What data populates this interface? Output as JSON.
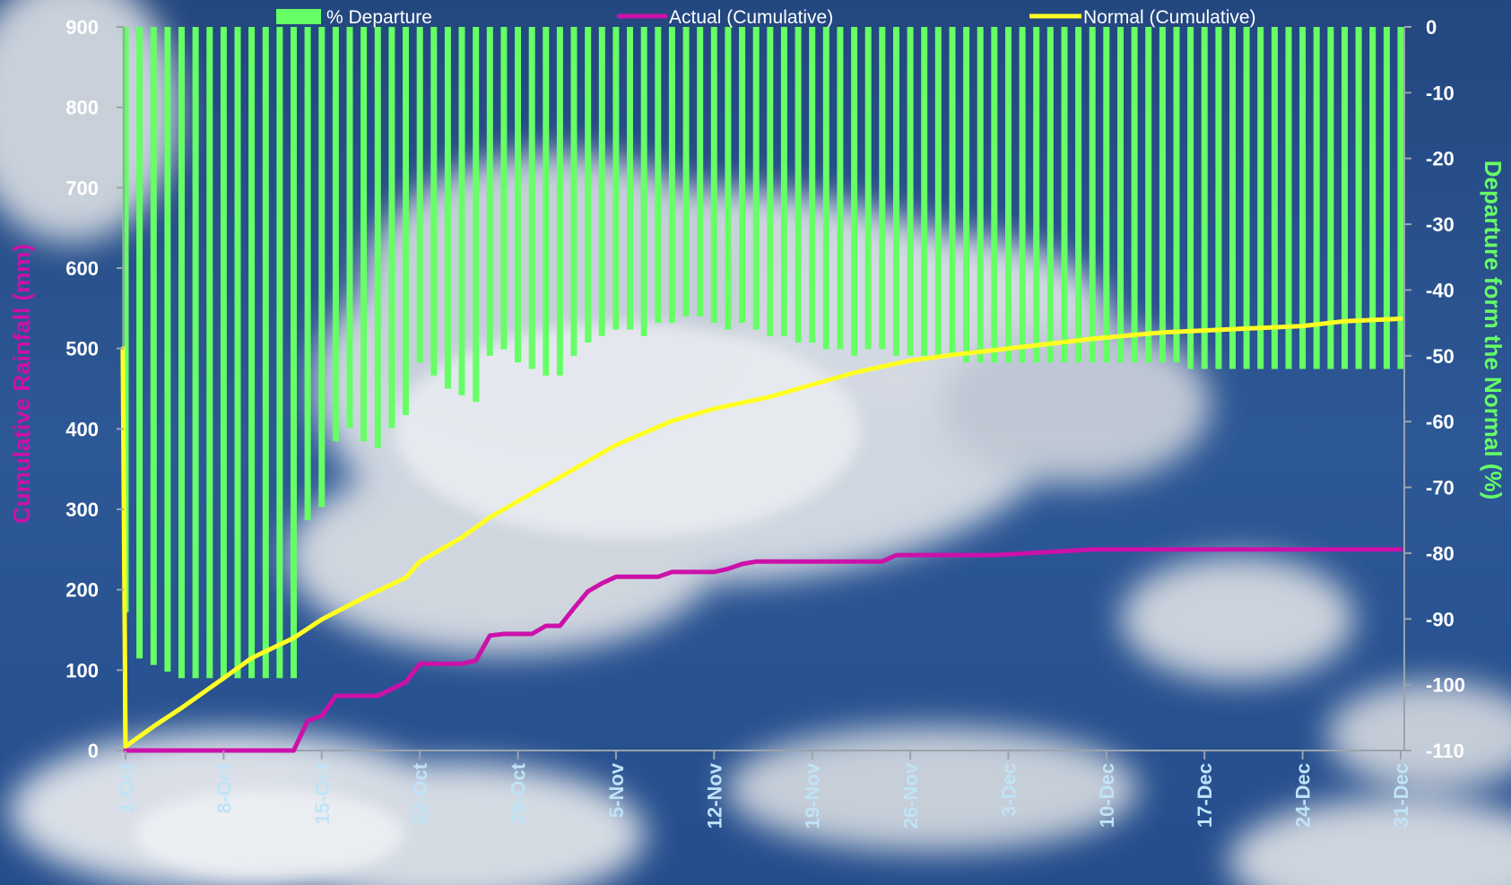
{
  "chart_data": {
    "type": "bar+line",
    "legend": {
      "placement": "top",
      "items": [
        {
          "label": "% Departure",
          "marker": "bar",
          "color": "#66ff66"
        },
        {
          "label": "Actual (Cumulative)",
          "marker": "line",
          "color": "#cc11aa"
        },
        {
          "label": "Normal (Cumulative)",
          "marker": "line",
          "color": "#ffff22"
        }
      ]
    },
    "y_left": {
      "label": "Cumulative Rainfall (mm)",
      "label_color": "#cc11aa",
      "range": [
        0,
        900
      ],
      "ticks": [
        0,
        100,
        200,
        300,
        400,
        500,
        600,
        700,
        800,
        900
      ]
    },
    "y_right": {
      "label": "Departure form the Normal (%)",
      "label_color": "#66ff66",
      "range": [
        -110,
        0
      ],
      "ticks": [
        0,
        -10,
        -20,
        -30,
        -40,
        -50,
        -60,
        -70,
        -80,
        -90,
        -100,
        -110
      ]
    },
    "x_axis": {
      "days": 92,
      "tick_labels": [
        {
          "label": "1-Oct",
          "day": 1
        },
        {
          "label": "8-Oct",
          "day": 8
        },
        {
          "label": "15-Oct",
          "day": 15
        },
        {
          "label": "22-Oct",
          "day": 22
        },
        {
          "label": "29-Oct",
          "day": 29
        },
        {
          "label": "5-Nov",
          "day": 36
        },
        {
          "label": "12-Nov",
          "day": 43
        },
        {
          "label": "19-Nov",
          "day": 50
        },
        {
          "label": "26-Nov",
          "day": 57
        },
        {
          "label": "3-Dec",
          "day": 64
        },
        {
          "label": "10-Dec",
          "day": 71
        },
        {
          "label": "17-Dec",
          "day": 78
        },
        {
          "label": "24-Dec",
          "day": 85
        },
        {
          "label": "31-Dec",
          "day": 92
        }
      ]
    },
    "series": [
      {
        "name": "% Departure",
        "axis": "right",
        "kind": "bar",
        "color": "#66ff66",
        "values": [
          -89,
          -96,
          -97,
          -98,
          -99,
          -99,
          -99,
          -99,
          -99,
          -99,
          -99,
          -99,
          -99,
          -75,
          -73,
          -63,
          -61,
          -63,
          -64,
          -61,
          -59,
          -51,
          -53,
          -55,
          -56,
          -57,
          -50,
          -49,
          -51,
          -52,
          -53,
          -53,
          -50,
          -48,
          -47,
          -46,
          -46,
          -47,
          -45,
          -45,
          -44,
          -44,
          -45,
          -46,
          -45,
          -46,
          -47,
          -47,
          -48,
          -48,
          -49,
          -49,
          -50,
          -49,
          -49,
          -50,
          -50,
          -50,
          -50,
          -50,
          -51,
          -51,
          -51,
          -51,
          -51,
          -51,
          -51,
          -51,
          -51,
          -51,
          -51,
          -51,
          -51,
          -51,
          -51,
          -51,
          -52,
          -52,
          -52,
          -52,
          -52,
          -52,
          -52,
          -52,
          -52,
          -52,
          -52,
          -52,
          -52,
          -52,
          -52,
          -52
        ]
      },
      {
        "name": "Actual (Cumulative)",
        "axis": "left",
        "kind": "line",
        "color": "#cc11aa",
        "points": [
          [
            1,
            0
          ],
          [
            13,
            0
          ],
          [
            14,
            37
          ],
          [
            15,
            43
          ],
          [
            16,
            68
          ],
          [
            19,
            68
          ],
          [
            21,
            85
          ],
          [
            22,
            108
          ],
          [
            25,
            108
          ],
          [
            26,
            112
          ],
          [
            27,
            143
          ],
          [
            28,
            145
          ],
          [
            30,
            145
          ],
          [
            31,
            155
          ],
          [
            32,
            155
          ],
          [
            33,
            177
          ],
          [
            34,
            198
          ],
          [
            35,
            208
          ],
          [
            36,
            216
          ],
          [
            39,
            216
          ],
          [
            40,
            222
          ],
          [
            43,
            222
          ],
          [
            44,
            226
          ],
          [
            45,
            232
          ],
          [
            46,
            235
          ],
          [
            55,
            235
          ],
          [
            56,
            243
          ],
          [
            63,
            243
          ],
          [
            68,
            248
          ],
          [
            70,
            250
          ],
          [
            92,
            250
          ]
        ]
      },
      {
        "name": "Normal (Cumulative)",
        "axis": "left",
        "kind": "line",
        "color": "#ffff22",
        "points": [
          [
            0.8,
            500
          ],
          [
            1,
            5
          ],
          [
            3,
            30
          ],
          [
            5,
            53
          ],
          [
            8,
            90
          ],
          [
            10,
            115
          ],
          [
            13,
            140
          ],
          [
            15,
            163
          ],
          [
            18,
            190
          ],
          [
            21,
            215
          ],
          [
            22,
            235
          ],
          [
            25,
            265
          ],
          [
            27,
            290
          ],
          [
            30,
            320
          ],
          [
            33,
            350
          ],
          [
            36,
            380
          ],
          [
            40,
            410
          ],
          [
            43,
            425
          ],
          [
            47,
            440
          ],
          [
            50,
            455
          ],
          [
            53,
            470
          ],
          [
            57,
            485
          ],
          [
            60,
            492
          ],
          [
            65,
            502
          ],
          [
            70,
            512
          ],
          [
            75,
            520
          ],
          [
            80,
            524
          ],
          [
            85,
            528
          ],
          [
            88,
            534
          ],
          [
            92,
            537
          ]
        ]
      }
    ]
  }
}
